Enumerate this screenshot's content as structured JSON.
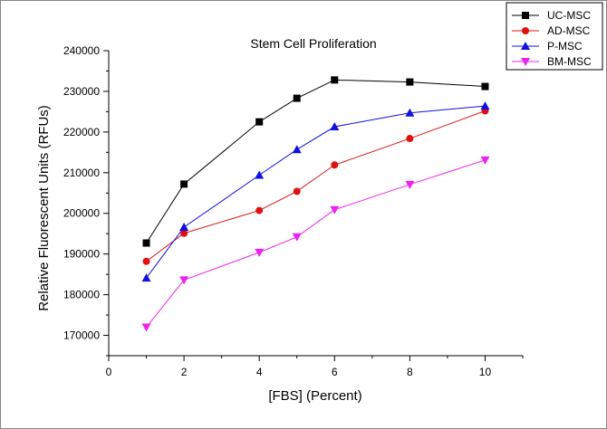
{
  "chart_data": {
    "type": "line",
    "title": "Stem Cell Proliferation",
    "xlabel": "[FBS] (Percent)",
    "ylabel": "Relative Fluorescent Units (RFUs)",
    "xlim": [
      0,
      11
    ],
    "ylim": [
      165000,
      240000
    ],
    "xticks": [
      0,
      2,
      4,
      6,
      8,
      10
    ],
    "yticks": [
      170000,
      180000,
      190000,
      200000,
      210000,
      220000,
      230000,
      240000
    ],
    "x": [
      1,
      2,
      4,
      5,
      6,
      8,
      10
    ],
    "legend_position": "top-right",
    "grid": false,
    "series": [
      {
        "name": "UC-MSC",
        "color": "#000000",
        "marker": "square",
        "values": [
          192700,
          207200,
          222500,
          228300,
          232800,
          232300,
          231200
        ]
      },
      {
        "name": "AD-MSC",
        "color": "#e01010",
        "marker": "circle",
        "values": [
          188200,
          195100,
          200700,
          205400,
          211900,
          218400,
          225200
        ]
      },
      {
        "name": "P-MSC",
        "color": "#1010e0",
        "marker": "triangle-up",
        "values": [
          184100,
          196600,
          209400,
          215700,
          221300,
          224700,
          226400
        ]
      },
      {
        "name": "BM-MSC",
        "color": "#ee22ee",
        "marker": "triangle-down",
        "values": [
          172000,
          183600,
          190400,
          194200,
          200900,
          207100,
          213100
        ]
      }
    ]
  }
}
